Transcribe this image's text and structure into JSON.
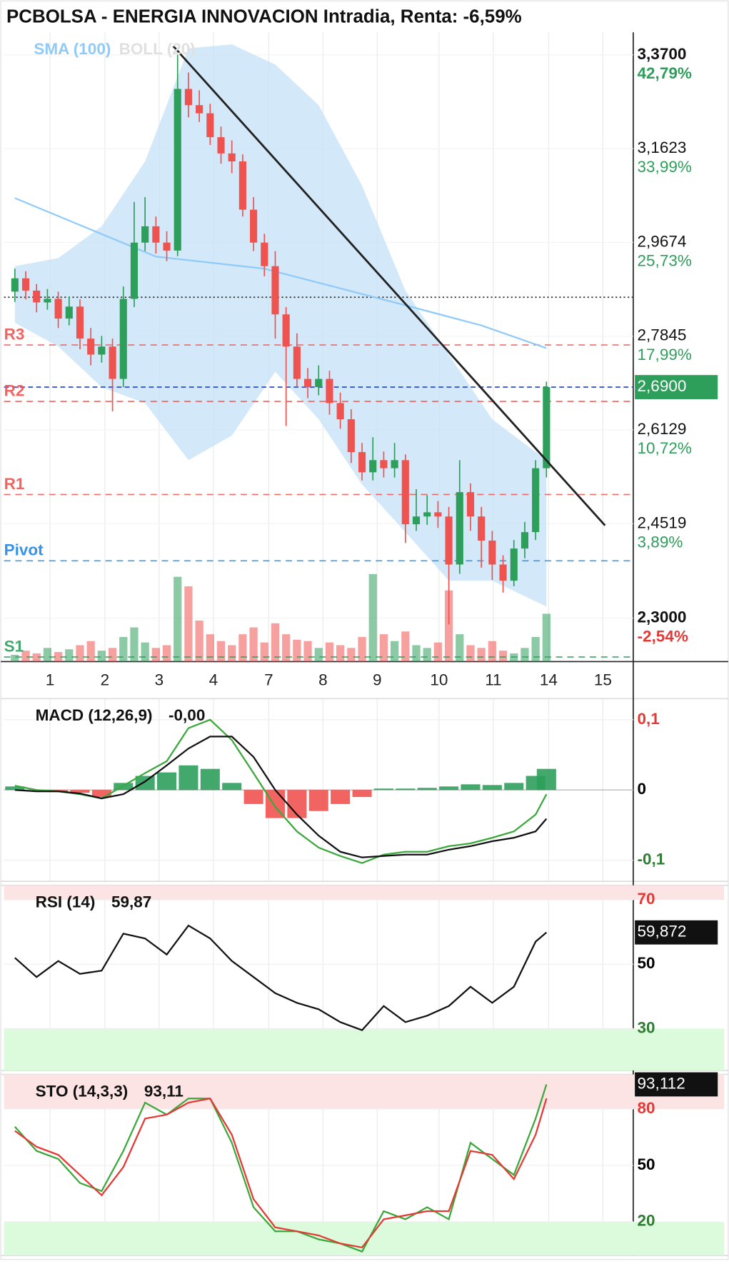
{
  "chart_data": [
    {
      "type": "candlestick",
      "title": "PCBOLSA - ENERGIA INNOVACION Intradia, Renta: -6,59%",
      "legend": [
        {
          "name": "SMA (100)",
          "color": "#90caf9"
        },
        {
          "name": "BOLL (20)",
          "color": "#e0e0e0"
        }
      ],
      "x": [
        1,
        2,
        3,
        4,
        5,
        6,
        7,
        8,
        9,
        10,
        11,
        12,
        13,
        14,
        15,
        16,
        17,
        18,
        19,
        20,
        21,
        22,
        23,
        24,
        25,
        26,
        27,
        28,
        29,
        30,
        31,
        32,
        33,
        34,
        35,
        36,
        37,
        38,
        39,
        40,
        41,
        42,
        43,
        44,
        45,
        46,
        47,
        48,
        49,
        50
      ],
      "open": [
        2.87,
        2.896,
        2.872,
        2.849,
        2.856,
        2.818,
        2.841,
        2.78,
        2.75,
        2.765,
        2.705,
        2.856,
        2.967,
        3.0,
        2.967,
        2.951,
        3.293,
        3.257,
        3.239,
        3.187,
        3.152,
        3.135,
        3.034,
        2.967,
        2.92,
        2.826,
        2.765,
        2.705,
        2.69,
        2.705,
        2.661,
        2.632,
        2.574,
        2.539,
        2.56,
        2.546,
        2.56,
        2.451,
        2.464,
        2.471,
        2.464,
        2.385,
        2.505,
        2.464,
        2.424,
        2.385,
        2.359,
        2.411,
        2.438,
        2.546
      ],
      "high": [
        2.915,
        2.91,
        2.885,
        2.875,
        2.87,
        2.86,
        2.855,
        2.8,
        2.785,
        2.78,
        2.88,
        3.05,
        3.06,
        3.02,
        2.99,
        3.37,
        3.33,
        3.29,
        3.26,
        3.21,
        3.18,
        3.15,
        3.06,
        2.985,
        2.95,
        2.84,
        2.79,
        2.725,
        2.73,
        2.72,
        2.68,
        2.65,
        2.59,
        2.6,
        2.575,
        2.59,
        2.57,
        2.51,
        2.5,
        2.49,
        2.48,
        2.56,
        2.52,
        2.48,
        2.44,
        2.4,
        2.425,
        2.455,
        2.56,
        2.7
      ],
      "low": [
        2.85,
        2.855,
        2.83,
        2.835,
        2.8,
        2.805,
        2.76,
        2.73,
        2.735,
        2.646,
        2.69,
        2.84,
        2.95,
        2.945,
        2.93,
        2.94,
        3.23,
        3.22,
        3.17,
        3.13,
        3.11,
        3.02,
        2.95,
        2.9,
        2.78,
        2.62,
        2.69,
        2.67,
        2.675,
        2.64,
        2.615,
        2.555,
        2.525,
        2.525,
        2.53,
        2.53,
        2.42,
        2.44,
        2.45,
        2.445,
        2.29,
        2.37,
        2.44,
        2.38,
        2.36,
        2.34,
        2.35,
        2.395,
        2.425,
        2.53
      ],
      "close": [
        2.896,
        2.872,
        2.849,
        2.856,
        2.818,
        2.841,
        2.78,
        2.75,
        2.765,
        2.705,
        2.856,
        2.967,
        3.0,
        2.967,
        2.951,
        3.293,
        3.257,
        3.239,
        3.187,
        3.152,
        3.135,
        3.034,
        2.967,
        2.92,
        2.826,
        2.765,
        2.705,
        2.69,
        2.705,
        2.661,
        2.632,
        2.574,
        2.539,
        2.56,
        2.546,
        2.56,
        2.451,
        2.464,
        2.471,
        2.464,
        2.385,
        2.505,
        2.464,
        2.424,
        2.385,
        2.359,
        2.411,
        2.438,
        2.546,
        2.69
      ],
      "up_color": "#2e9e5b",
      "down_color": "#ef5350",
      "xlim": [
        0,
        58
      ],
      "xticks": [
        {
          "value": 4.24,
          "label": "1"
        },
        {
          "value": 9.3,
          "label": "2"
        },
        {
          "value": 14.3,
          "label": "3"
        },
        {
          "value": 19.3,
          "label": "4"
        },
        {
          "value": 24.4,
          "label": "7"
        },
        {
          "value": 29.4,
          "label": "8"
        },
        {
          "value": 34.4,
          "label": "9"
        },
        {
          "value": 40.1,
          "label": "10"
        },
        {
          "value": 45.1,
          "label": "11"
        },
        {
          "value": 50.2,
          "label": "14"
        },
        {
          "value": 55.2,
          "label": "15"
        }
      ],
      "ylim": [
        2.233,
        3.422
      ],
      "log_scale": true,
      "yticks": [
        {
          "value": 3.37,
          "label": "3,3700",
          "change": {
            "value": 42.79,
            "label": "42,79%"
          }
        },
        {
          "value": 3.1623,
          "label": "3,1623",
          "change": {
            "value": 33.99,
            "label": "33,99%"
          }
        },
        {
          "value": 2.9674,
          "label": "2,9674",
          "change": {
            "value": 25.73,
            "label": "25,73%"
          }
        },
        {
          "value": 2.7845,
          "label": "2,7845",
          "change": {
            "value": 17.99,
            "label": "17,99%"
          }
        },
        {
          "value": 2.6129,
          "label": "2,6129",
          "change": {
            "value": 10.72,
            "label": "10,72%"
          }
        },
        {
          "value": 2.4519,
          "label": "2,4519",
          "change": {
            "value": 3.89,
            "label": "3,89%"
          }
        },
        {
          "value": 2.3,
          "label": "2,3000",
          "change": {
            "value": -2.54,
            "label": "-2,54%"
          }
        }
      ],
      "sma": {
        "x": [
          1,
          14,
          24,
          36,
          44,
          50
        ],
        "values": [
          3.058,
          2.939,
          2.915,
          2.849,
          2.805,
          2.762
        ],
        "color": "#90caf9"
      },
      "bollinger": {
        "x": [
          1,
          5,
          9,
          13,
          17,
          21,
          25,
          29,
          33,
          37,
          41,
          45,
          50
        ],
        "upper": [
          2.92,
          2.936,
          3.0,
          3.135,
          3.385,
          3.394,
          3.348,
          3.257,
          3.084,
          2.872,
          2.75,
          2.632,
          2.56
        ],
        "lower": [
          2.81,
          2.765,
          2.69,
          2.661,
          2.56,
          2.603,
          2.718,
          2.632,
          2.518,
          2.438,
          2.359,
          2.359,
          2.318
        ],
        "color": "#c4e2f7"
      },
      "volume": {
        "values": [
          5,
          8,
          6,
          10,
          7,
          9,
          12,
          15,
          8,
          10,
          18,
          25,
          14,
          10,
          12,
          62,
          55,
          30,
          20,
          15,
          12,
          20,
          25,
          14,
          28,
          20,
          16,
          15,
          10,
          14,
          12,
          10,
          18,
          64,
          20,
          15,
          22,
          12,
          10,
          14,
          52,
          20,
          12,
          10,
          15,
          8,
          6,
          10,
          18,
          35
        ],
        "ylim": [
          0,
          100
        ]
      },
      "levels": [
        {
          "name": "R3",
          "value": 2.768,
          "color": "#ef5350"
        },
        {
          "name": "R2",
          "value": 2.664,
          "color": "#ef5350"
        },
        {
          "name": "R1",
          "value": 2.501,
          "color": "#ef5350"
        },
        {
          "name": "Pivot",
          "value": 2.391,
          "color": "#1e88e5"
        },
        {
          "name": "S1",
          "value": 2.24,
          "color": "#2e9e5b"
        }
      ],
      "reference_line": {
        "value": 2.859,
        "color": "#333333"
      },
      "trendline": {
        "x": [
          15.6,
          55.4
        ],
        "values": [
          3.39,
          2.449
        ],
        "color": "#222222"
      },
      "last_price": {
        "value": 2.69,
        "label": "2,6900",
        "color": "#2e9e5b",
        "line_color": "#1e3fd8"
      }
    },
    {
      "type": "line",
      "name": "MACD (12,26,9)",
      "current": {
        "value": -0.001,
        "label": "-0,00"
      },
      "x": [
        1,
        3,
        5,
        7,
        9,
        11,
        13,
        15,
        17,
        19,
        21,
        23,
        25,
        27,
        29,
        31,
        33,
        35,
        37,
        39,
        41,
        43,
        45,
        47,
        49,
        50
      ],
      "ylim": [
        -0.13,
        0.13
      ],
      "yticks": [
        {
          "value": 0.1,
          "label": "0,1"
        },
        0,
        {
          "value": -0.1,
          "label": "-0,1"
        }
      ],
      "ytick_colors": [
        "#e53935",
        "#000000",
        "#2e7d32"
      ],
      "series": [
        {
          "kind": "bar",
          "color": "#2e9e5b",
          "negative_color": "#ef5350",
          "values": [
            0.005,
            0,
            -0.003,
            -0.004,
            -0.01,
            0.01,
            0.02,
            0.025,
            0.035,
            0.03,
            0.01,
            -0.02,
            -0.04,
            -0.04,
            -0.03,
            -0.02,
            -0.01,
            0.002,
            0.002,
            0.003,
            0.005,
            0.008,
            0.007,
            0.01,
            0.02,
            0.03
          ]
        },
        {
          "kind": "line",
          "color": "#3aa83a",
          "values": [
            0.006,
            0,
            -0.002,
            -0.006,
            -0.012,
            0.006,
            0.024,
            0.041,
            0.088,
            0.1,
            0.071,
            0.024,
            -0.024,
            -0.059,
            -0.082,
            -0.094,
            -0.104,
            -0.092,
            -0.088,
            -0.088,
            -0.08,
            -0.076,
            -0.068,
            -0.059,
            -0.035,
            -0.006
          ]
        },
        {
          "kind": "line",
          "color": "#111111",
          "values": [
            0,
            -0.002,
            -0.002,
            -0.005,
            -0.012,
            -0.006,
            0.012,
            0.035,
            0.059,
            0.076,
            0.076,
            0.047,
            0,
            -0.035,
            -0.065,
            -0.088,
            -0.096,
            -0.094,
            -0.092,
            -0.092,
            -0.085,
            -0.08,
            -0.073,
            -0.068,
            -0.059,
            -0.041
          ]
        }
      ]
    },
    {
      "type": "line",
      "name": "RSI (14)",
      "current": {
        "value": 59.87,
        "label": "59,87"
      },
      "last_value": {
        "value": 59.872,
        "label": "59,872"
      },
      "x": [
        1,
        3,
        5,
        7,
        9,
        11,
        13,
        15,
        17,
        19,
        21,
        23,
        25,
        27,
        29,
        31,
        33,
        35,
        37,
        39,
        41,
        43,
        45,
        47,
        49,
        50
      ],
      "ylim": [
        17,
        74.5
      ],
      "yticks": [
        70,
        50,
        30
      ],
      "ytick_colors": [
        "#e53935",
        "#000000",
        "#2e7d32"
      ],
      "zones": [
        {
          "from": 70,
          "to": 74.5,
          "color": "#fde4e4"
        },
        {
          "from": 17,
          "to": 30,
          "color": "#dcfadc"
        }
      ],
      "series": [
        {
          "kind": "line",
          "color": "#111111",
          "values": [
            52,
            46,
            51,
            47,
            48,
            59.5,
            58,
            53,
            62,
            58,
            51,
            46,
            41,
            38,
            36,
            32,
            29.5,
            37,
            32,
            34,
            37,
            43,
            38,
            43,
            57,
            59.87
          ]
        }
      ]
    },
    {
      "type": "line",
      "name": "STO (14,3,3)",
      "current": {
        "value": 93.11,
        "label": "93,11"
      },
      "last_value": {
        "value": 93.112,
        "label": "93,112"
      },
      "x": [
        1,
        3,
        5,
        7,
        9,
        11,
        13,
        15,
        17,
        19,
        21,
        23,
        25,
        27,
        29,
        31,
        33,
        35,
        37,
        39,
        41,
        43,
        45,
        47,
        49,
        50
      ],
      "ylim": [
        2,
        98.4
      ],
      "yticks": [
        80,
        50,
        20
      ],
      "ytick_colors": [
        "#e53935",
        "#000000",
        "#2e7d32"
      ],
      "zones": [
        {
          "from": 80,
          "to": 98.4,
          "color": "#fde4e4"
        },
        {
          "from": 2,
          "to": 20,
          "color": "#dcfadc"
        }
      ],
      "series": [
        {
          "kind": "line",
          "color": "#3aa83a",
          "values": [
            70.6,
            57.7,
            53.4,
            40.6,
            36.3,
            57.7,
            83.4,
            77.0,
            85.6,
            85.6,
            62.0,
            27.7,
            14.9,
            14.9,
            10.6,
            8.4,
            4.1,
            25.6,
            21.3,
            27.7,
            21.3,
            62.0,
            53.4,
            44.9,
            74.9,
            93.11
          ]
        },
        {
          "kind": "line",
          "color": "#e53935",
          "values": [
            68.4,
            59.9,
            55.6,
            44.9,
            34.1,
            49.1,
            74.9,
            77.0,
            83.4,
            85.6,
            66.3,
            32.0,
            17.0,
            14.9,
            12.7,
            8.4,
            6.3,
            21.3,
            23.4,
            25.6,
            25.6,
            57.7,
            55.6,
            42.7,
            66.3,
            85.6
          ]
        }
      ]
    }
  ]
}
